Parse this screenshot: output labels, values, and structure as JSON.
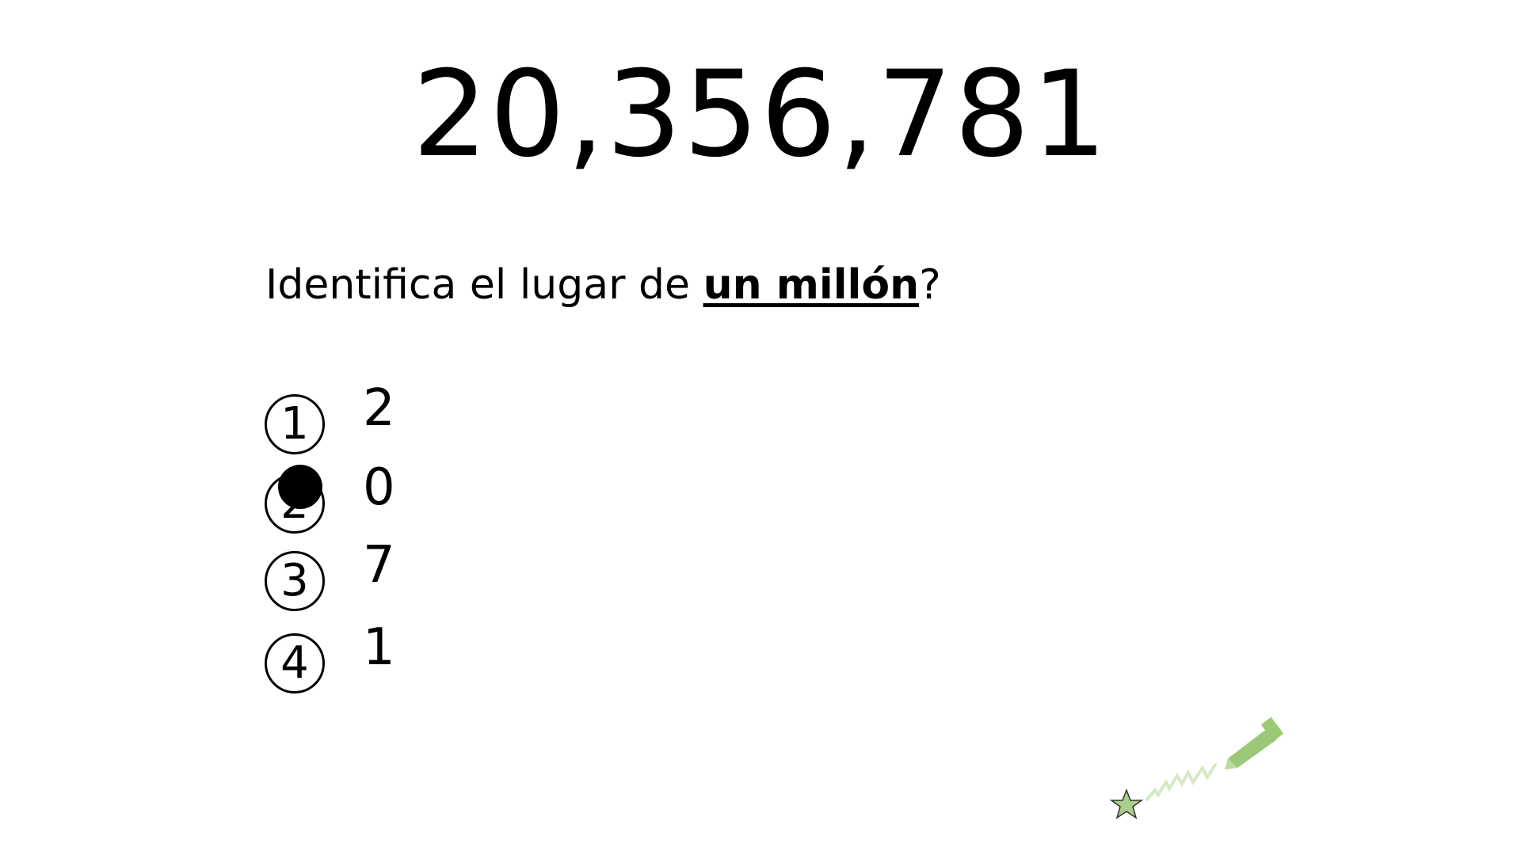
{
  "slide": {
    "number_display": "20,356,781",
    "question": {
      "prefix": "Identifica el lugar de ",
      "emphasis": "un millón",
      "suffix": "?"
    },
    "options": [
      {
        "marker": "1",
        "value": "2",
        "selected": false
      },
      {
        "marker": "2",
        "value": "0",
        "selected": true
      },
      {
        "marker": "3",
        "value": "7",
        "selected": false
      },
      {
        "marker": "4",
        "value": "1",
        "selected": false
      }
    ]
  },
  "decoration": {
    "icons": [
      "star-icon",
      "pen-icon"
    ],
    "star_color": "#a9cf8a",
    "pen_color": "#8bc060"
  }
}
